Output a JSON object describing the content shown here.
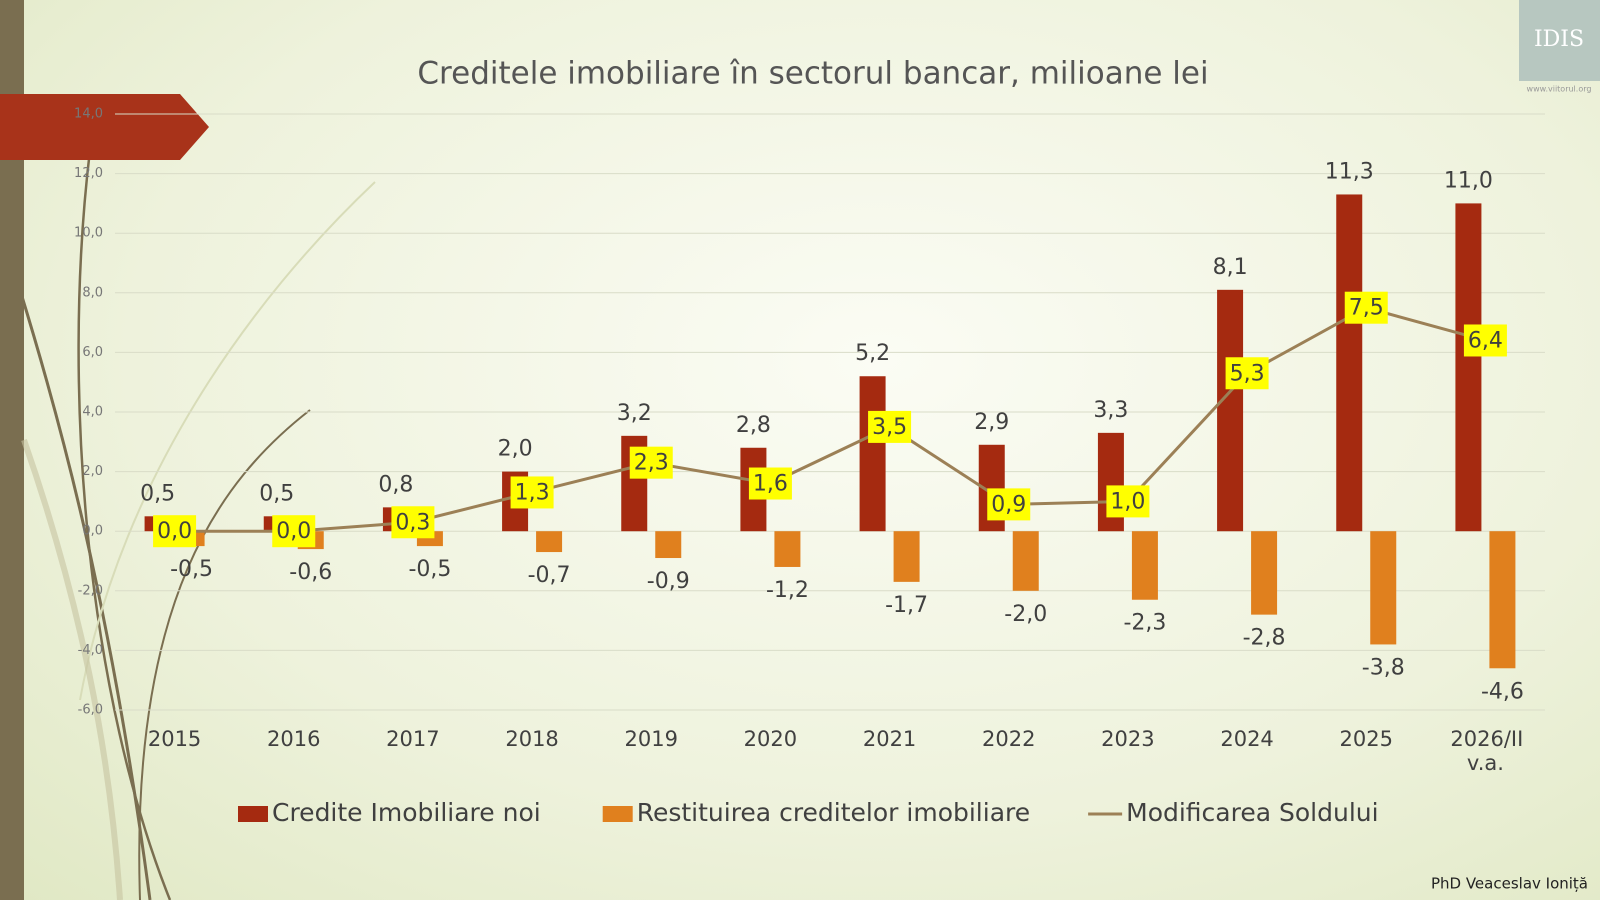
{
  "chart_data": {
    "type": "bar-line",
    "title": "Creditele imobiliare în sectorul bancar, milioane lei",
    "categories": [
      "2015",
      "2016",
      "2017",
      "2018",
      "2019",
      "2020",
      "2021",
      "2022",
      "2023",
      "2024",
      "2025",
      "2026/II v.a."
    ],
    "series": [
      {
        "name": "Credite Imobiliare noi",
        "type": "bar",
        "color": "#a52a10",
        "values": [
          0.5,
          0.5,
          0.8,
          2.0,
          3.2,
          2.8,
          5.2,
          2.9,
          3.3,
          8.1,
          11.3,
          11.0
        ],
        "value_labels": [
          "0,5",
          "0,5",
          "0,8",
          "2,0",
          "3,2",
          "2,8",
          "5,2",
          "2,9",
          "3,3",
          "8,1",
          "11,3",
          "11,0"
        ]
      },
      {
        "name": "Restituirea creditelor imobiliare",
        "type": "bar",
        "color": "#e0801e",
        "values": [
          -0.5,
          -0.6,
          -0.5,
          -0.7,
          -0.9,
          -1.2,
          -1.7,
          -2.0,
          -2.3,
          -2.8,
          -3.8,
          -4.6
        ],
        "value_labels": [
          "-0,5",
          "-0,6",
          "-0,5",
          "-0,7",
          "-0,9",
          "-1,2",
          "-1,7",
          "-2,0",
          "-2,3",
          "-2,8",
          "-3,8",
          "-4,6"
        ]
      },
      {
        "name": "Modificarea Soldului",
        "type": "line",
        "color": "#9c8056",
        "values": [
          0.0,
          0.0,
          0.3,
          1.3,
          2.3,
          1.6,
          3.5,
          0.9,
          1.0,
          5.3,
          7.5,
          6.4
        ],
        "value_labels": [
          "0,0",
          "0,0",
          "0,3",
          "1,3",
          "2,3",
          "1,6",
          "3,5",
          "0,9",
          "1,0",
          "5,3",
          "7,5",
          "6,4"
        ]
      }
    ],
    "ylim": [
      -6,
      14
    ],
    "yticks": [
      {
        "value": -6,
        "label": "-6,0"
      },
      {
        "value": -4,
        "label": "-4,0"
      },
      {
        "value": -2,
        "label": "-2,0"
      },
      {
        "value": 0,
        "label": "0,0"
      },
      {
        "value": 2,
        "label": "2,0"
      },
      {
        "value": 4,
        "label": "4,0"
      },
      {
        "value": 6,
        "label": "6,0"
      },
      {
        "value": 8,
        "label": "8,0"
      },
      {
        "value": 10,
        "label": "10,0"
      },
      {
        "value": 12,
        "label": "12,0"
      },
      {
        "value": 14,
        "label": "14,0"
      }
    ],
    "grid": true,
    "legend": "bottom"
  },
  "footer": "PhD Veaceslav Ioniță",
  "logo": {
    "name": "IDIS",
    "url": "www.viitorul.org"
  }
}
